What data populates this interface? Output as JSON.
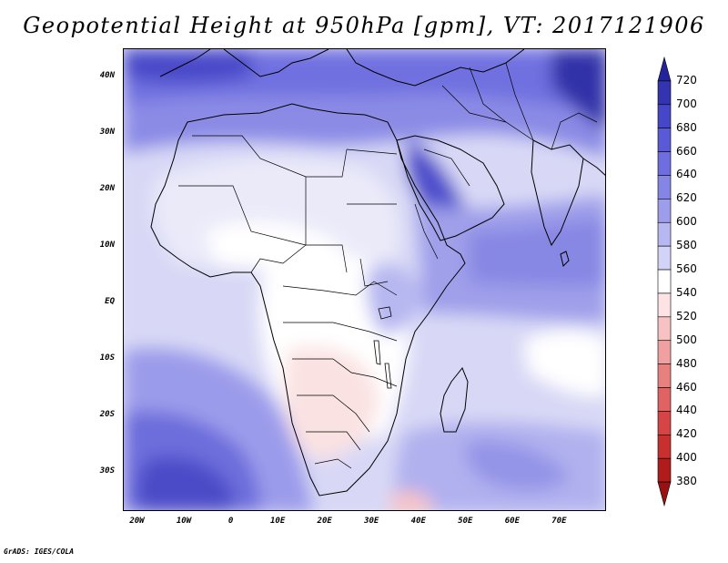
{
  "title": "Geopotential Height at 950hPa [gpm], VT: 2017121906",
  "credit": "GrADS: IGES/COLA",
  "map": {
    "lon_range": [
      -23,
      80
    ],
    "lat_range": [
      -37,
      45
    ],
    "lat_labels": [
      {
        "text": "40N",
        "lat": 40
      },
      {
        "text": "30N",
        "lat": 30
      },
      {
        "text": "20N",
        "lat": 20
      },
      {
        "text": "10N",
        "lat": 10
      },
      {
        "text": "EQ",
        "lat": 0
      },
      {
        "text": "10S",
        "lat": -10
      },
      {
        "text": "20S",
        "lat": -20
      },
      {
        "text": "30S",
        "lat": -30
      }
    ],
    "lon_labels": [
      {
        "text": "20W",
        "lon": -20
      },
      {
        "text": "10W",
        "lon": -10
      },
      {
        "text": "0",
        "lon": 0
      },
      {
        "text": "10E",
        "lon": 10
      },
      {
        "text": "20E",
        "lon": 20
      },
      {
        "text": "30E",
        "lon": 30
      },
      {
        "text": "40E",
        "lon": 40
      },
      {
        "text": "50E",
        "lon": 50
      },
      {
        "text": "60E",
        "lon": 60
      },
      {
        "text": "70E",
        "lon": 70
      }
    ]
  },
  "colorbar": {
    "levels": [
      "720",
      "700",
      "680",
      "660",
      "640",
      "620",
      "600",
      "580",
      "560",
      "540",
      "520",
      "500",
      "480",
      "460",
      "440",
      "420",
      "400",
      "380"
    ],
    "colors": [
      "#23239b",
      "#3434b0",
      "#4646c8",
      "#5a5ad6",
      "#6e6ee0",
      "#8585e6",
      "#9d9deb",
      "#b7b7f1",
      "#d3d3f7",
      "#ffffff",
      "#fde3e3",
      "#f8c2c2",
      "#f0a0a0",
      "#e88080",
      "#e06262",
      "#d64545",
      "#c83030",
      "#b01c1c",
      "#981212"
    ]
  }
}
